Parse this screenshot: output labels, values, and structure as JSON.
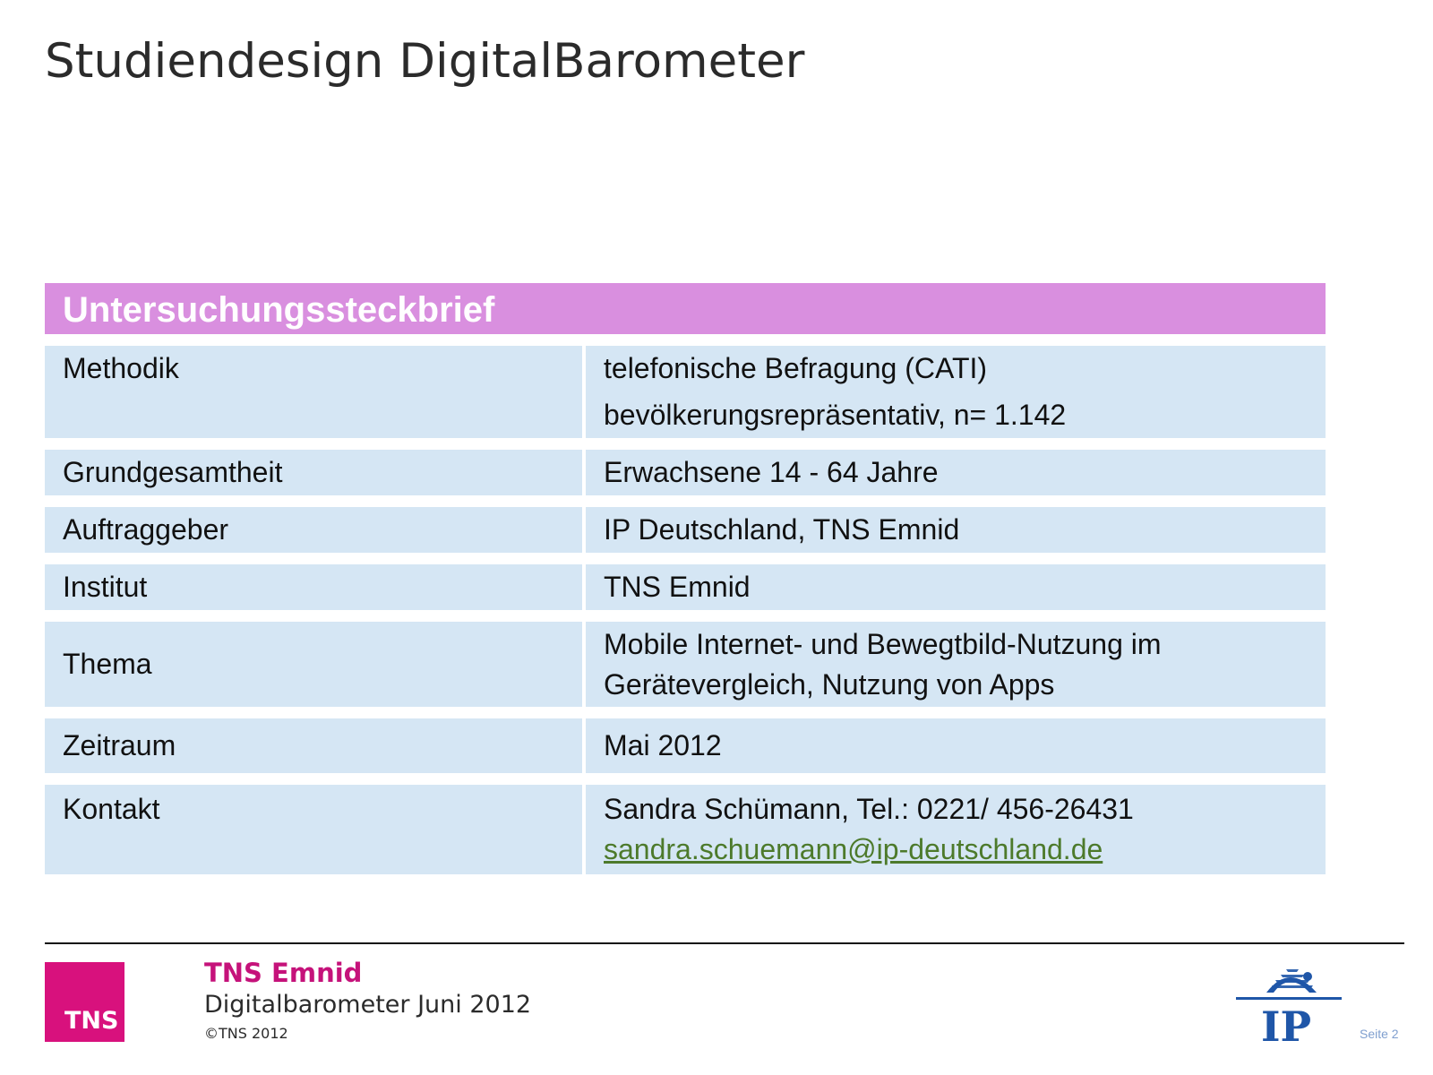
{
  "page": {
    "title": "Studiendesign DigitalBarometer"
  },
  "table": {
    "header": "Untersuchungssteckbrief",
    "rows": [
      {
        "key": "Methodik",
        "value_lines": [
          "telefonische Befragung (CATI)",
          "bevölkerungsrepräsentativ, n= 1.142"
        ]
      },
      {
        "key": "Grundgesamtheit",
        "value": "Erwachsene 14 - 64 Jahre"
      },
      {
        "key": "Auftraggeber",
        "value": "IP Deutschland, TNS Emnid"
      },
      {
        "key": "Institut",
        "value": "TNS Emnid"
      },
      {
        "key": "Thema",
        "value_lines": [
          "Mobile Internet- und Bewegtbild-Nutzung im",
          "Gerätevergleich, Nutzung von Apps"
        ]
      },
      {
        "key": "Zeitraum",
        "value": "Mai 2012"
      },
      {
        "key": "Kontakt",
        "value": "Sandra Schümann, Tel.: 0221/ 456-26431",
        "email": "sandra.schuemann@ip-deutschland.de"
      }
    ]
  },
  "footer": {
    "logo_text": "TNS",
    "company": "TNS Emnid",
    "subtitle": "Digitalbarometer Juni 2012",
    "copyright": "©TNS 2012",
    "ip_logo_text": "IP",
    "page_number": "Seite 2"
  },
  "colors": {
    "header_bg": "#d98fdf",
    "row_bg": "#d5e6f4",
    "tns_magenta": "#d8117d",
    "ip_blue": "#1f56a8",
    "email_green": "#4d7a2b"
  }
}
